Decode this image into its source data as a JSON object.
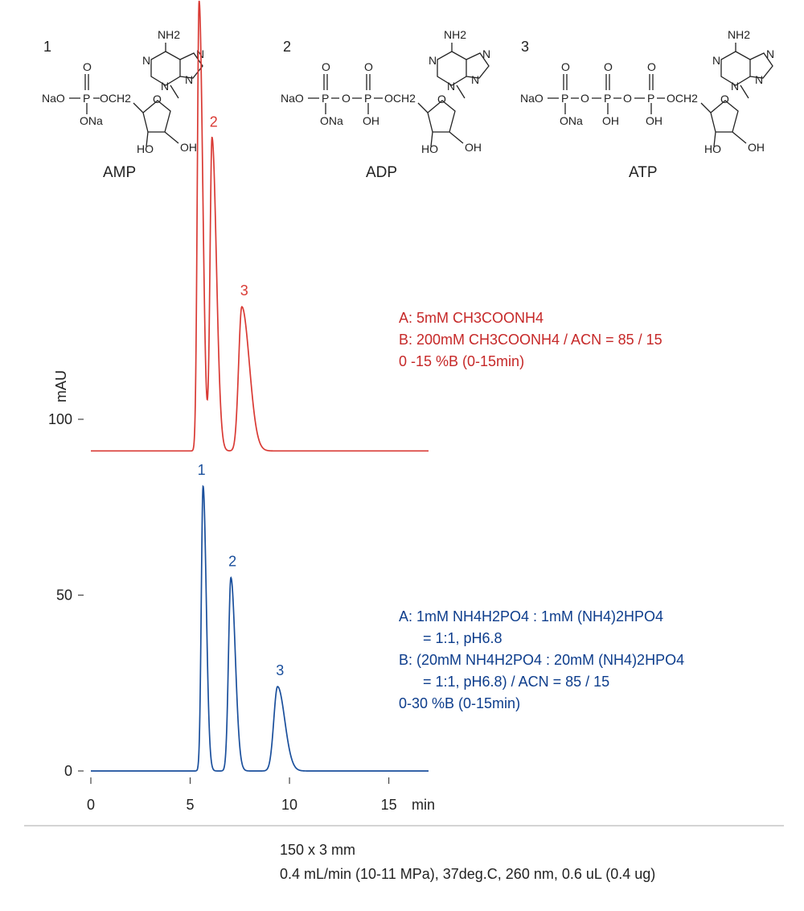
{
  "compounds": [
    {
      "number": "1",
      "name": "AMP",
      "labels": {
        "amine": "NH2",
        "phos1_left": "NaO",
        "phos1_o": "O",
        "phos1_p": "P",
        "link": "OCH2",
        "phos1_bottom": "ONa",
        "n1": "N",
        "n2": "N",
        "n3": "N",
        "n4": "N",
        "ring_o": "O",
        "ho": "HO",
        "oh": "OH"
      }
    },
    {
      "number": "2",
      "name": "ADP",
      "labels": {
        "amine": "NH2",
        "left": "NaO",
        "ona": "ONa",
        "oh": "OH",
        "link": "OCH2",
        "ho2": "HO",
        "oh2": "OH"
      }
    },
    {
      "number": "3",
      "name": "ATP",
      "labels": {
        "amine": "NH2",
        "left": "NaO",
        "ona": "ONa",
        "oh": "OH",
        "link": "OCH2",
        "ho2": "HO",
        "oh2": "OH"
      }
    }
  ],
  "chart_data": [
    {
      "type": "line",
      "ylabel": "mAU",
      "xlabel": "min",
      "xlim": [
        0,
        17
      ],
      "ylim": [
        0,
        190
      ],
      "x_ticks": [
        "0",
        "5",
        "10",
        "15"
      ],
      "y_ticks": [
        "0",
        "50",
        "100"
      ],
      "y_tick_values": [
        0,
        50,
        100
      ],
      "series": [
        {
          "color": "#d93a34",
          "baseline": 91,
          "peaks": [
            {
              "label": "1",
              "rt": 5.45,
              "height": 128
            },
            {
              "label": "2",
              "rt": 6.1,
              "height": 89
            },
            {
              "label": "3",
              "rt": 7.6,
              "height": 41
            }
          ],
          "conditions": [
            "A: 5mM CH3COONH4",
            "B: 200mM CH3COONH4 / ACN = 85 / 15",
            "0 -15 %B (0-15min)"
          ]
        },
        {
          "color": "#1a4f9c",
          "baseline": 0,
          "peaks": [
            {
              "label": "1",
              "rt": 5.65,
              "height": 81
            },
            {
              "label": "2",
              "rt": 7.05,
              "height": 55
            },
            {
              "label": "3",
              "rt": 9.4,
              "height": 24
            }
          ],
          "conditions": [
            "A: 1mM NH4H2PO4 : 1mM (NH4)2HPO4",
            "= 1:1, pH6.8",
            "B: (20mM NH4H2PO4 : 20mM (NH4)2HPO4",
            "= 1:1, pH6.8) / ACN = 85 / 15",
            "0-30 %B (0-15min)"
          ]
        }
      ]
    }
  ],
  "footer": {
    "line1": "150 x 3 mm",
    "line2": "0.4 mL/min (10-11 MPa), 37deg.C, 260 nm, 0.6 uL (0.4 ug)"
  }
}
